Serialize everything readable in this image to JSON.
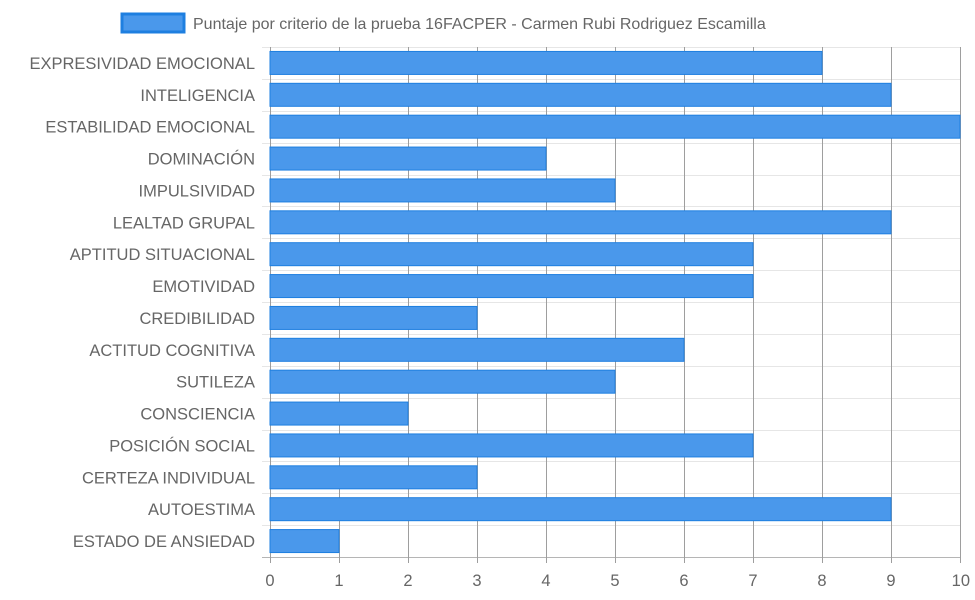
{
  "chart_data": {
    "type": "bar",
    "orientation": "horizontal",
    "title": "",
    "xlabel": "",
    "ylabel": "",
    "xlim": [
      0,
      10
    ],
    "x_ticks": [
      "0",
      "1",
      "2",
      "3",
      "4",
      "5",
      "6",
      "7",
      "8",
      "9",
      "10"
    ],
    "grid": true,
    "legend_position": "top",
    "categories": [
      "EXPRESIVIDAD EMOCIONAL",
      "INTELIGENCIA",
      "ESTABILIDAD EMOCIONAL",
      "DOMINACIÓN",
      "IMPULSIVIDAD",
      "LEALTAD GRUPAL",
      "APTITUD SITUACIONAL",
      "EMOTIVIDAD",
      "CREDIBILIDAD",
      "ACTITUD COGNITIVA",
      "SUTILEZA",
      "CONSCIENCIA",
      "POSICIÓN SOCIAL",
      "CERTEZA INDIVIDUAL",
      "AUTOESTIMA",
      "ESTADO DE ANSIEDAD"
    ],
    "series": [
      {
        "name": "Puntaje por criterio de la prueba 16FACPER - Carmen Rubi Rodriguez Escamilla",
        "values": [
          8,
          9,
          10,
          4,
          5,
          9,
          7,
          7,
          3,
          6,
          5,
          2,
          7,
          3,
          9,
          1
        ],
        "color": "#4a98eb",
        "border_color": "#1e7fe0"
      }
    ]
  }
}
